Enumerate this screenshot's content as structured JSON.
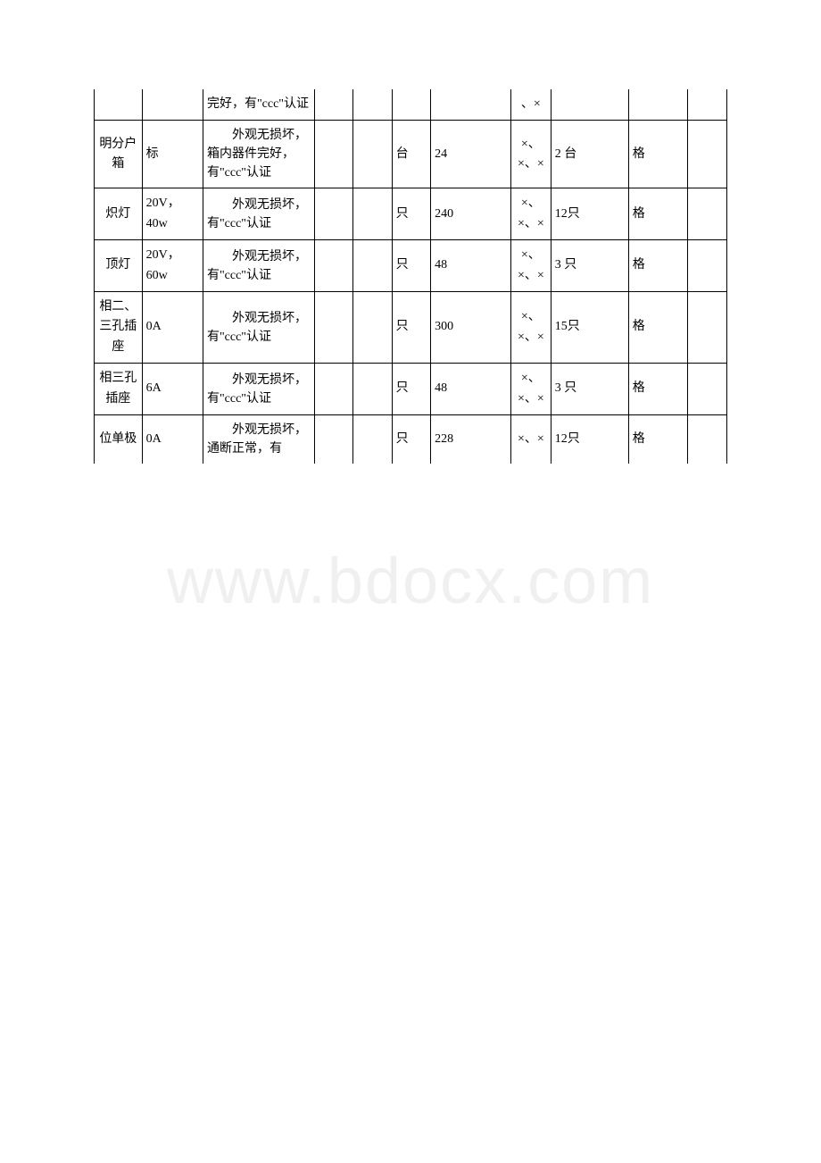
{
  "watermark": "www.bdocx.com",
  "rows": [
    {
      "c1": "",
      "c2": "",
      "c3": "完好，有\"ccc\"认证",
      "c3_indent": false,
      "c4": "",
      "c5": "",
      "c6": "",
      "c7": "",
      "c8": "、×",
      "c9": "",
      "c10": "",
      "c11": ""
    },
    {
      "c1": "明分户箱",
      "c2": "标",
      "c3": "外观无损坏，箱内器件完好，有\"ccc\"认证",
      "c3_indent": true,
      "c4": "",
      "c5": "",
      "c6": "台",
      "c7": "24",
      "c8": "×、×、×",
      "c9": "2 台",
      "c10": "格",
      "c11": ""
    },
    {
      "c1": "炽灯",
      "c2": "20V，40w",
      "c3": "外观无损坏，有\"ccc\"认证",
      "c3_indent": true,
      "c4": "",
      "c5": "",
      "c6": "只",
      "c7": "240",
      "c8": "×、×、×",
      "c9": "12只",
      "c10": "格",
      "c11": ""
    },
    {
      "c1": "顶灯",
      "c2": "20V，60w",
      "c3": "外观无损坏，有\"ccc\"认证",
      "c3_indent": true,
      "c4": "",
      "c5": "",
      "c6": "只",
      "c7": "48",
      "c8": "×、×、×",
      "c9": "3 只",
      "c10": "格",
      "c11": ""
    },
    {
      "c1": "相二、三孔插座",
      "c2": "0A",
      "c3": "外观无损坏，有\"ccc\"认证",
      "c3_indent": true,
      "c4": "",
      "c5": "",
      "c6": "只",
      "c7": "300",
      "c8": "×、×、×",
      "c9": "15只",
      "c10": "格",
      "c11": ""
    },
    {
      "c1": "相三孔插座",
      "c2": "6A",
      "c3": "外观无损坏，有\"ccc\"认证",
      "c3_indent": true,
      "c4": "",
      "c5": "",
      "c6": "只",
      "c7": "48",
      "c8": "×、×、×",
      "c9": "3 只",
      "c10": "格",
      "c11": ""
    },
    {
      "c1": "位单极",
      "c2": "0A",
      "c3": "外观无损坏，通断正常，有",
      "c3_indent": true,
      "c4": "",
      "c5": "",
      "c6": "只",
      "c7": "228",
      "c8": "×、×",
      "c9": "12只",
      "c10": "格",
      "c11": ""
    }
  ]
}
